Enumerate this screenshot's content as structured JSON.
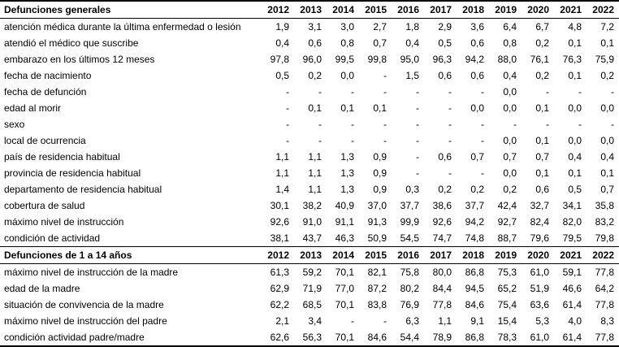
{
  "table": {
    "years": [
      "2012",
      "2013",
      "2014",
      "2015",
      "2016",
      "2017",
      "2018",
      "2019",
      "2020",
      "2021",
      "2022"
    ],
    "sections": [
      {
        "header": "Defunciones generales",
        "rows": [
          {
            "label": "atención médica durante la última enfermedad o lesión",
            "values": [
              "1,9",
              "3,1",
              "3,0",
              "2,7",
              "1,8",
              "2,9",
              "3,6",
              "6,4",
              "6,7",
              "4,8",
              "7,2"
            ]
          },
          {
            "label": "atendió el médico que suscribe",
            "values": [
              "0,4",
              "0,6",
              "0,8",
              "0,7",
              "0,4",
              "0,5",
              "0,6",
              "0,8",
              "0,2",
              "0,1",
              "0,1"
            ]
          },
          {
            "label": "embarazo en los últimos 12 meses",
            "values": [
              "97,8",
              "96,0",
              "99,5",
              "99,8",
              "95,0",
              "96,3",
              "94,2",
              "88,0",
              "76,1",
              "76,3",
              "75,9"
            ]
          },
          {
            "label": "fecha de nacimiento",
            "values": [
              "0,5",
              "0,2",
              "0,0",
              "-",
              "1,5",
              "0,6",
              "0,6",
              "0,4",
              "0,2",
              "0,1",
              "0,2"
            ]
          },
          {
            "label": "fecha de defunción",
            "values": [
              "-",
              "-",
              "-",
              "-",
              "-",
              "-",
              "-",
              "0,0",
              "-",
              "-",
              "-"
            ]
          },
          {
            "label": "edad al morir",
            "values": [
              "-",
              "0,1",
              "0,1",
              "0,1",
              "-",
              "-",
              "0,0",
              "0,0",
              "0,1",
              "0,0",
              "0,0"
            ]
          },
          {
            "label": "sexo",
            "values": [
              "-",
              "-",
              "-",
              "-",
              "-",
              "-",
              "-",
              "-",
              "-",
              "-",
              "-"
            ]
          },
          {
            "label": "local de ocurrencia",
            "values": [
              "-",
              "-",
              "-",
              "-",
              "-",
              "-",
              "-",
              "0,0",
              "0,1",
              "0,0",
              "0,0"
            ]
          },
          {
            "label": "país de residencia habitual",
            "values": [
              "1,1",
              "1,1",
              "1,3",
              "0,9",
              "-",
              "0,6",
              "0,7",
              "0,7",
              "0,7",
              "0,4",
              "0,4"
            ]
          },
          {
            "label": "provincia de residencia habitual",
            "values": [
              "1,1",
              "1,1",
              "1,3",
              "0,9",
              "-",
              "-",
              "-",
              "0,0",
              "0,1",
              "0,1",
              "0,1"
            ]
          },
          {
            "label": "departamento de residencia habitual",
            "values": [
              "1,4",
              "1,1",
              "1,3",
              "0,9",
              "0,3",
              "0,2",
              "0,2",
              "0,2",
              "0,6",
              "0,5",
              "0,7"
            ]
          },
          {
            "label": "cobertura de salud",
            "values": [
              "30,1",
              "38,2",
              "40,9",
              "37,0",
              "37,7",
              "38,6",
              "37,7",
              "42,4",
              "32,7",
              "34,1",
              "35,8"
            ]
          },
          {
            "label": "máximo nivel de instrucción",
            "values": [
              "92,6",
              "91,0",
              "91,1",
              "91,3",
              "99,9",
              "92,6",
              "94,2",
              "92,7",
              "82,4",
              "82,0",
              "83,2"
            ]
          },
          {
            "label": "condición de actividad",
            "values": [
              "38,1",
              "43,7",
              "46,3",
              "50,9",
              "54,5",
              "74,7",
              "74,8",
              "88,7",
              "79,6",
              "79,5",
              "79,8"
            ]
          }
        ]
      },
      {
        "header": "Defunciones de 1 a 14 años",
        "rows": [
          {
            "label": "máximo nivel de instrucción de la madre",
            "values": [
              "61,3",
              "59,2",
              "70,1",
              "82,1",
              "75,8",
              "80,0",
              "86,8",
              "75,3",
              "61,0",
              "59,1",
              "77,8"
            ]
          },
          {
            "label": "edad de la madre",
            "values": [
              "62,9",
              "71,9",
              "77,0",
              "87,2",
              "80,2",
              "84,4",
              "94,5",
              "65,2",
              "51,9",
              "46,6",
              "64,2"
            ]
          },
          {
            "label": "situación de convivencia de la madre",
            "values": [
              "62,2",
              "68,5",
              "70,1",
              "83,8",
              "76,9",
              "77,8",
              "84,6",
              "75,4",
              "63,6",
              "61,4",
              "77,8"
            ]
          },
          {
            "label": "máximo nivel de instrucción del padre",
            "values": [
              "2,1",
              "3,4",
              "-",
              "-",
              "6,3",
              "1,1",
              "9,1",
              "15,4",
              "5,3",
              "4,0",
              "8,3"
            ]
          },
          {
            "label": "condición actividad padre/madre",
            "values": [
              "62,6",
              "56,3",
              "70,1",
              "84,6",
              "54,4",
              "78,9",
              "86,8",
              "78,3",
              "61,0",
              "61,4",
              "77,8"
            ]
          }
        ]
      }
    ]
  }
}
